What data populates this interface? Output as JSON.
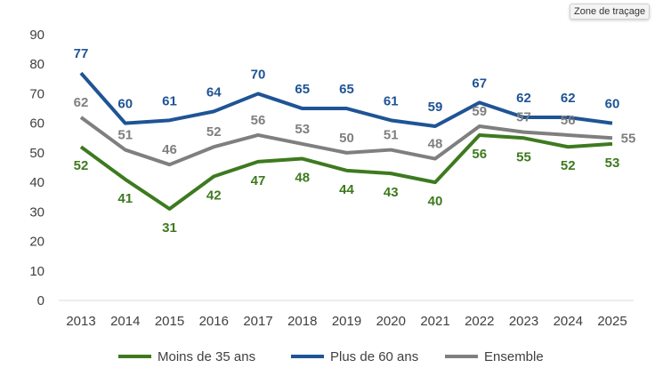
{
  "chart_data": {
    "type": "line",
    "title": "",
    "xlabel": "",
    "ylabel": "",
    "x": [
      "2013",
      "2014",
      "2015",
      "2016",
      "2017",
      "2018",
      "2019",
      "2020",
      "2021",
      "2022",
      "2023",
      "2024",
      "2025"
    ],
    "ylim": [
      0,
      90
    ],
    "yticks": [
      0,
      10,
      20,
      30,
      40,
      50,
      60,
      70,
      80,
      90
    ],
    "grid": false,
    "legend_position": "bottom",
    "data_labels": true,
    "series": [
      {
        "name": "Moins de 35 ans",
        "color": "#3d7a1f",
        "values": [
          52,
          41,
          31,
          42,
          47,
          48,
          44,
          43,
          40,
          56,
          55,
          52,
          53
        ]
      },
      {
        "name": "Plus de 60 ans",
        "color": "#1f5495",
        "values": [
          77,
          60,
          61,
          64,
          70,
          65,
          65,
          61,
          59,
          67,
          62,
          62,
          60
        ]
      },
      {
        "name": "Ensemble",
        "color": "#7f7f7f",
        "values": [
          62,
          51,
          46,
          52,
          56,
          53,
          50,
          51,
          48,
          59,
          57,
          56,
          55
        ]
      }
    ]
  },
  "tooltip": "Zone de traçage"
}
